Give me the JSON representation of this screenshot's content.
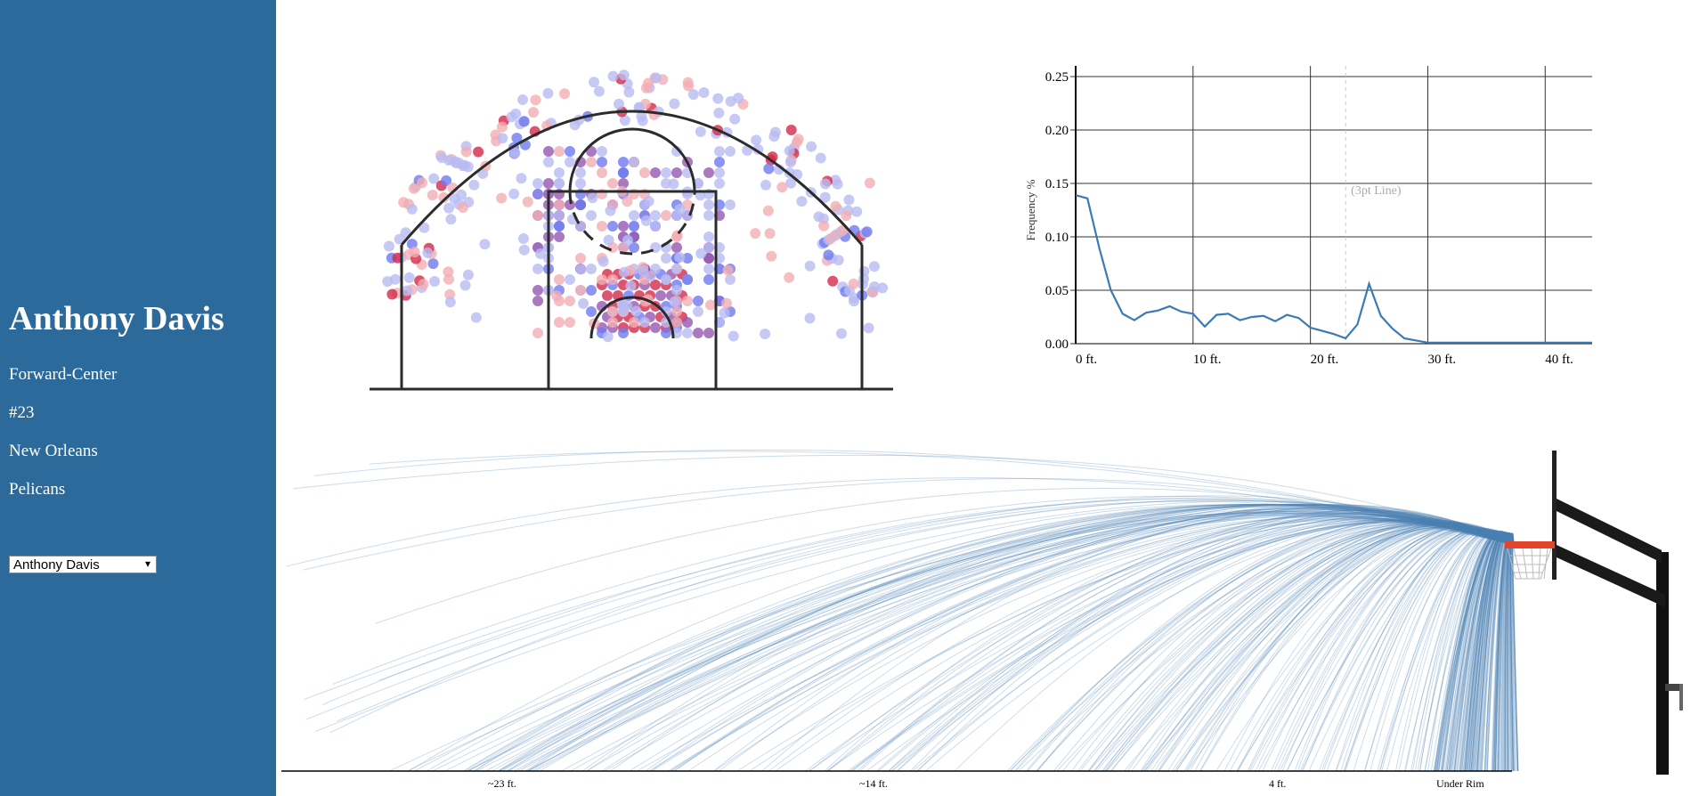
{
  "sidebar": {
    "name": "Anthony Davis",
    "position": "Forward-Center",
    "number": "#23",
    "team_city": "New Orleans",
    "team_name": "Pelicans",
    "select_value": "Anthony Davis",
    "select_arrow": "▾",
    "background_color": "#2b6a9b"
  },
  "chart_data": [
    {
      "type": "scatter",
      "name_hint": "shot-chart",
      "description": "half-court shot locations colored from blue (misses) through purple to red (makes)",
      "colors": [
        "#6f7af0",
        "#b9bcf3",
        "#9558b0",
        "#d3294a",
        "#f3aeb3"
      ],
      "court": {
        "hoop_x": 0,
        "hoop_y": 0
      }
    },
    {
      "type": "line",
      "name_hint": "shot-frequency",
      "xlabel": "",
      "ylabel": "Frequency %",
      "x_tick_labels": [
        "0 ft.",
        "10 ft.",
        "20 ft.",
        "30 ft.",
        "40 ft."
      ],
      "x_ticks": [
        0,
        10,
        20,
        30,
        40
      ],
      "y_tick_labels": [
        "0.00",
        "0.05",
        "0.10",
        "0.15",
        "0.20",
        "0.25"
      ],
      "y_ticks": [
        0,
        0.05,
        0.1,
        0.15,
        0.2,
        0.25
      ],
      "xlim": [
        0,
        44
      ],
      "ylim": [
        0,
        0.25
      ],
      "annotation": "(3pt Line)",
      "annotation_x": 23,
      "color": "#3b7ab5",
      "x": [
        0,
        1,
        2,
        3,
        4,
        5,
        6,
        7,
        8,
        9,
        10,
        11,
        12,
        13,
        14,
        15,
        16,
        17,
        18,
        19,
        20,
        21,
        22,
        23,
        24,
        25,
        26,
        27,
        28,
        29,
        30,
        31,
        32,
        33,
        34,
        35,
        36,
        37,
        38,
        39,
        40,
        41,
        42,
        43,
        44
      ],
      "values": [
        0.139,
        0.136,
        0.09,
        0.05,
        0.028,
        0.022,
        0.029,
        0.031,
        0.035,
        0.03,
        0.028,
        0.016,
        0.027,
        0.028,
        0.022,
        0.025,
        0.026,
        0.021,
        0.027,
        0.024,
        0.015,
        0.012,
        0.009,
        0.005,
        0.018,
        0.056,
        0.026,
        0.014,
        0.005,
        0.003,
        0.001,
        0.001,
        0.001,
        0.001,
        0.001,
        0.001,
        0.001,
        0.001,
        0.001,
        0.001,
        0.001,
        0.001,
        0.001,
        0.001,
        0.001
      ]
    },
    {
      "type": "line",
      "name_hint": "shot-arcs",
      "description": "side view of shot trajectories toward the rim",
      "x_tick_labels": [
        "~23 ft.",
        "~14 ft.",
        "4 ft.",
        "Under Rim"
      ],
      "color": "#4a82b4"
    }
  ]
}
